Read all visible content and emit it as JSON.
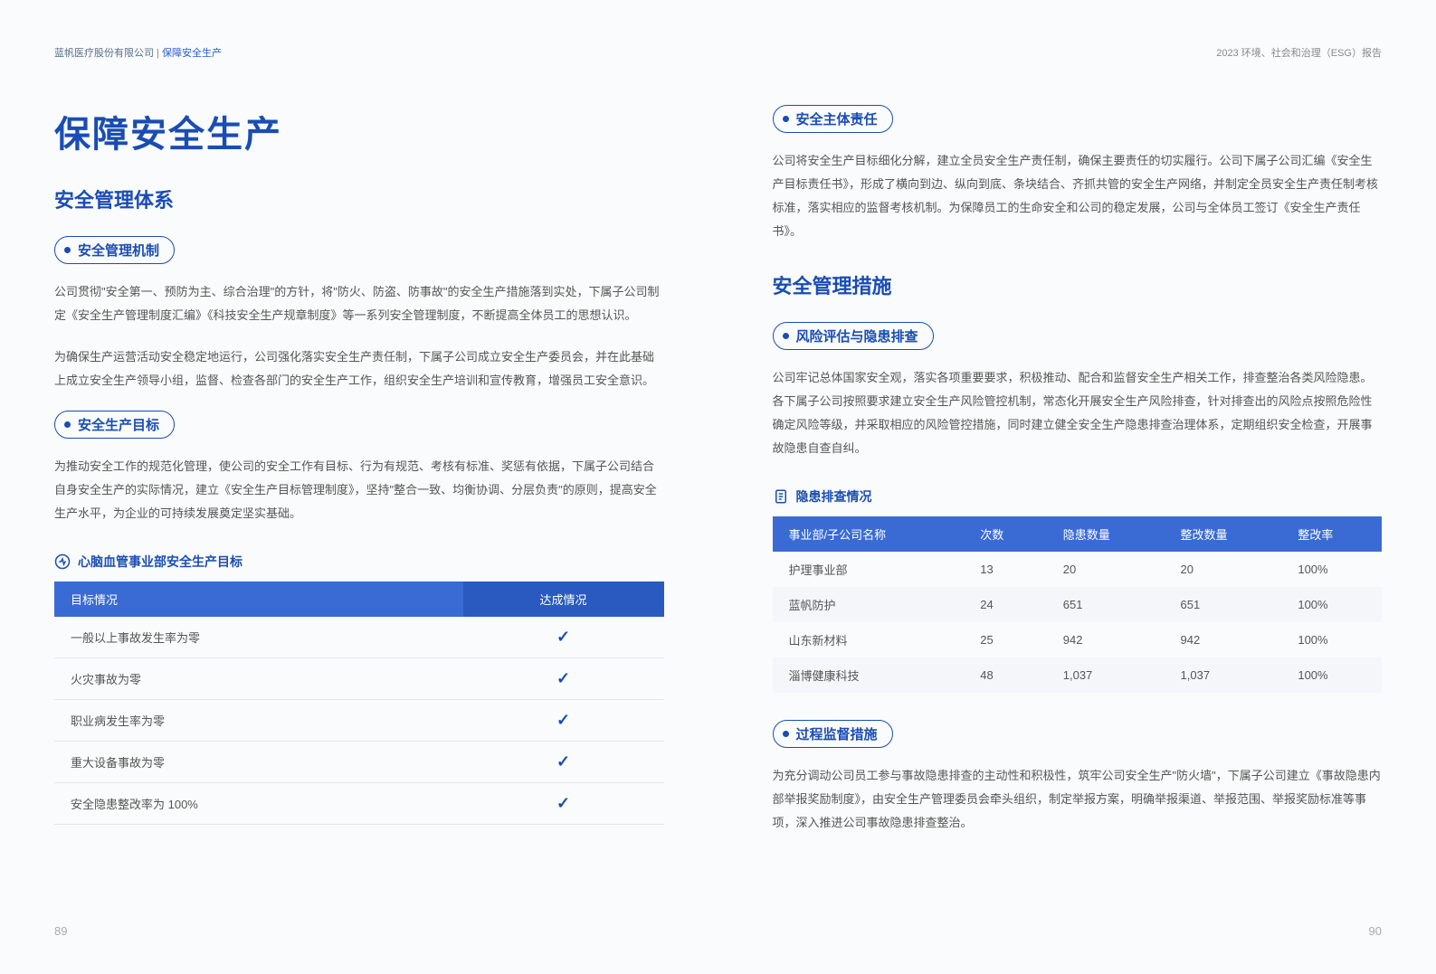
{
  "header": {
    "company": "蓝帆医疗股份有限公司",
    "divider": " | ",
    "section": "保障安全生产",
    "report": "2023 环境、社会和治理（ESG）报告"
  },
  "left": {
    "title": "保障安全生产",
    "h2_1": "安全管理体系",
    "pill_1": "安全管理机制",
    "p1": "公司贯彻\"安全第一、预防为主、综合治理\"的方针，将\"防火、防盗、防事故\"的安全生产措施落到实处，下属子公司制定《安全生产管理制度汇编》《科技安全生产规章制度》等一系列安全管理制度，不断提高全体员工的思想认识。",
    "p2": "为确保生产运营活动安全稳定地运行，公司强化落实安全生产责任制，下属子公司成立安全生产委员会，并在此基础上成立安全生产领导小组，监督、检查各部门的安全生产工作，组织安全生产培训和宣传教育，增强员工安全意识。",
    "pill_2": "安全生产目标",
    "p3": "为推动安全工作的规范化管理，使公司的安全工作有目标、行为有规范、考核有标准、奖惩有依据，下属子公司结合自身安全生产的实际情况，建立《安全生产目标管理制度》，坚持\"整合一致、均衡协调、分层负责\"的原则，提高安全生产水平，为企业的可持续发展奠定坚实基础。",
    "goals_label": "心脑血管事业部安全生产目标",
    "goals_table": {
      "th1": "目标情况",
      "th2": "达成情况",
      "rows": [
        "一般以上事故发生率为零",
        "火灾事故为零",
        "职业病发生率为零",
        "重大设备事故为零",
        "安全隐患整改率为 100%"
      ]
    },
    "page_num": "89"
  },
  "right": {
    "pill_1": "安全主体责任",
    "p1": "公司将安全生产目标细化分解，建立全员安全生产责任制，确保主要责任的切实履行。公司下属子公司汇编《安全生产目标责任书》，形成了横向到边、纵向到底、条块结合、齐抓共管的安全生产网络，并制定全员安全生产责任制考核标准，落实相应的监督考核机制。为保障员工的生命安全和公司的稳定发展，公司与全体员工签订《安全生产责任书》。",
    "h2_1": "安全管理措施",
    "pill_2": "风险评估与隐患排查",
    "p2": "公司牢记总体国家安全观，落实各项重要要求，积极推动、配合和监督安全生产相关工作，排查整治各类风险隐患。各下属子公司按照要求建立安全生产风险管控机制，常态化开展安全生产风险排查，针对排查出的风险点按照危险性确定风险等级，并采取相应的风险管控措施，同时建立健全安全生产隐患排查治理体系，定期组织安全检查，开展事故隐患自查自纠。",
    "hazard_label": "隐患排查情况",
    "hazard_table": {
      "headers": [
        "事业部/子公司名称",
        "次数",
        "隐患数量",
        "整改数量",
        "整改率"
      ],
      "rows": [
        [
          "护理事业部",
          "13",
          "20",
          "20",
          "100%"
        ],
        [
          "蓝帆防护",
          "24",
          "651",
          "651",
          "100%"
        ],
        [
          "山东新材料",
          "25",
          "942",
          "942",
          "100%"
        ],
        [
          "淄博健康科技",
          "48",
          "1,037",
          "1,037",
          "100%"
        ]
      ]
    },
    "pill_3": "过程监督措施",
    "p3": "为充分调动公司员工参与事故隐患排查的主动性和积极性，筑牢公司安全生产\"防火墙\"，下属子公司建立《事故隐患内部举报奖励制度》，由安全生产管理委员会牵头组织，制定举报方案，明确举报渠道、举报范围、举报奖励标准等事项，深入推进公司事故隐患排查整治。",
    "page_num": "90"
  }
}
